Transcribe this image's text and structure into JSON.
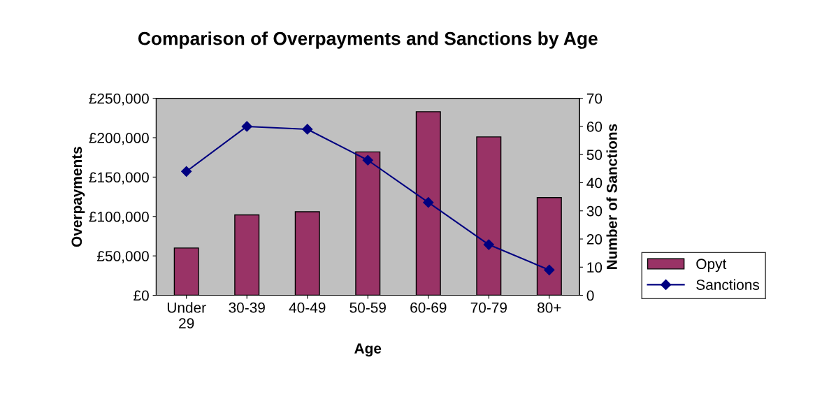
{
  "chart_data": {
    "type": "bar",
    "title": "Comparison of Overpayments and Sanctions by Age",
    "xlabel": "Age",
    "ylabel": "Overpayments",
    "y2label": "Number of Sanctions",
    "categories": [
      "Under\n29",
      "30-39",
      "40-49",
      "50-59",
      "60-69",
      "70-79",
      "80+"
    ],
    "series": [
      {
        "name": "Opyt",
        "color": "#993366",
        "values": [
          60000,
          102000,
          106000,
          182000,
          233000,
          201000,
          124000
        ]
      },
      {
        "name": "Sanctions",
        "type": "line",
        "axis": "y2",
        "color": "#000080",
        "marker": "diamond",
        "values": [
          44,
          60,
          59,
          48,
          33,
          18,
          9
        ]
      }
    ],
    "ylim": [
      0,
      250000
    ],
    "yticks": [
      {
        "value": 0,
        "label": "£0"
      },
      {
        "value": 50000,
        "label": "£50,000"
      },
      {
        "value": 100000,
        "label": "£100,000"
      },
      {
        "value": 150000,
        "label": "£150,000"
      },
      {
        "value": 200000,
        "label": "£200,000"
      },
      {
        "value": 250000,
        "label": "£250,000"
      }
    ],
    "y2lim": [
      0,
      70
    ],
    "y2ticks": [
      0,
      10,
      20,
      30,
      40,
      50,
      60,
      70
    ],
    "grid": false,
    "legend": "right",
    "line_style": "solid"
  }
}
